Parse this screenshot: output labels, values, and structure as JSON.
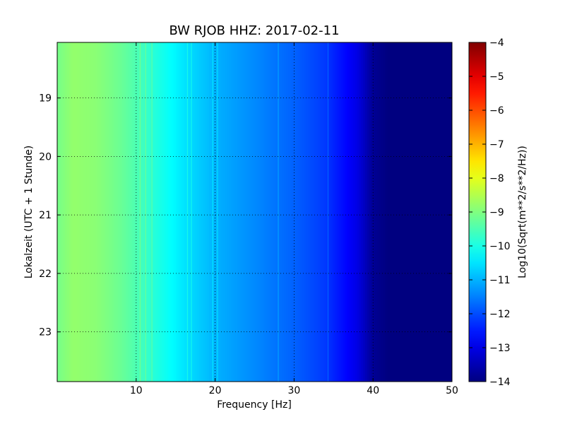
{
  "chart_data": {
    "type": "heatmap",
    "title": "BW RJOB HHZ: 2017-02-11",
    "xlabel": "Frequency [Hz]",
    "ylabel": "Lokalzeit (UTC + 1 Stunde)",
    "xlim": [
      0,
      50
    ],
    "ylim": [
      18.05,
      23.85
    ],
    "y_inverted": true,
    "x_ticks": [
      10,
      20,
      30,
      40,
      50
    ],
    "y_ticks": [
      19,
      20,
      21,
      22,
      23
    ],
    "grid": true,
    "colormap": "jet",
    "colorbar": {
      "label": "Log10(Sqrt(m**2/s**2/Hz))",
      "range": [
        -14,
        -4
      ],
      "ticks": [
        -4,
        -5,
        -6,
        -7,
        -8,
        -9,
        -10,
        -11,
        -12,
        -13,
        -14
      ]
    },
    "spectrum_profile": {
      "frequency_hz": [
        0,
        2,
        5,
        8,
        10,
        13,
        16,
        20,
        25,
        30,
        34,
        36,
        38,
        39,
        40,
        42,
        50
      ],
      "log10_amplitude": [
        -9.1,
        -8.8,
        -8.9,
        -9.2,
        -9.5,
        -10.0,
        -10.5,
        -11.0,
        -11.4,
        -11.8,
        -12.2,
        -12.6,
        -13.0,
        -13.4,
        -13.8,
        -14.0,
        -14.0
      ]
    },
    "spectral_lines_hz": [
      10.5,
      11.2,
      12.0,
      16.5,
      17.0,
      19.7,
      20.3,
      28.0,
      34.3
    ]
  }
}
